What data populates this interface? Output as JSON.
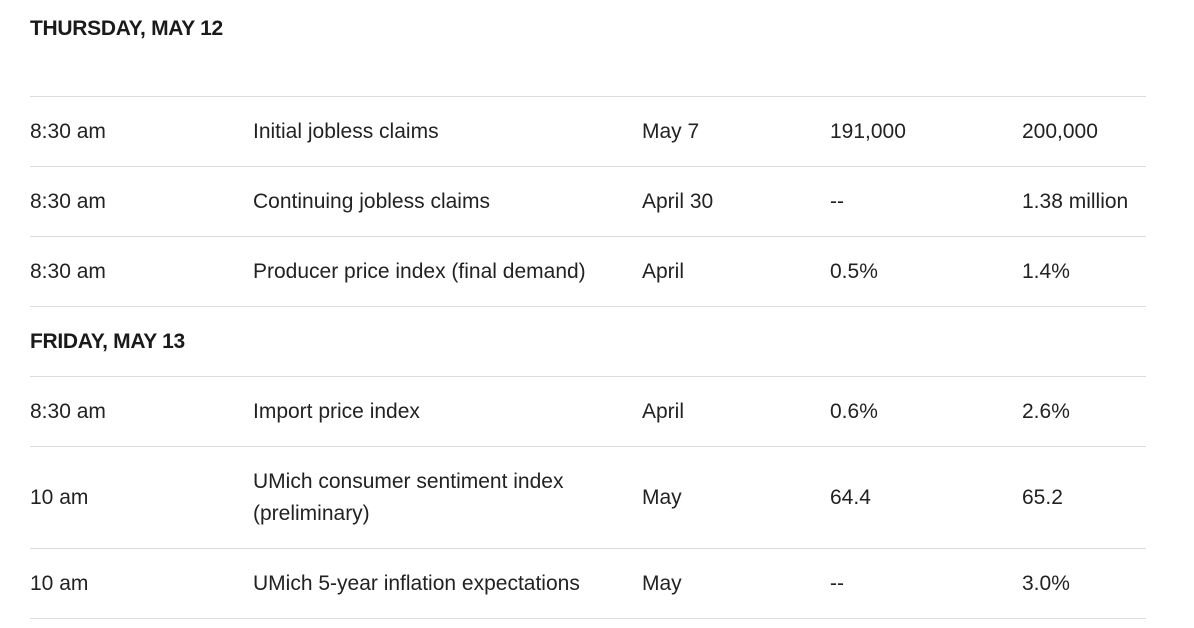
{
  "days": [
    {
      "label": "THURSDAY, MAY 12",
      "events": [
        {
          "time": "8:30 am",
          "name": "Initial jobless claims",
          "period": "May 7",
          "forecast": "191,000",
          "previous": "200,000"
        },
        {
          "time": "8:30 am",
          "name": "Continuing jobless claims",
          "period": "April 30",
          "forecast": "--",
          "previous": "1.38 million"
        },
        {
          "time": "8:30 am",
          "name": "Producer price index (final demand)",
          "period": "April",
          "forecast": "0.5%",
          "previous": "1.4%"
        }
      ]
    },
    {
      "label": "FRIDAY, MAY 13",
      "events": [
        {
          "time": "8:30 am",
          "name": "Import price index",
          "period": "April",
          "forecast": "0.6%",
          "previous": "2.6%"
        },
        {
          "time": "10 am",
          "name": "UMich consumer sentiment index (preliminary)",
          "period": "May",
          "forecast": "64.4",
          "previous": "65.2"
        },
        {
          "time": "10 am",
          "name": "UMich 5-year inflation expectations",
          "period": "May",
          "forecast": "--",
          "previous": "3.0%"
        }
      ]
    }
  ]
}
